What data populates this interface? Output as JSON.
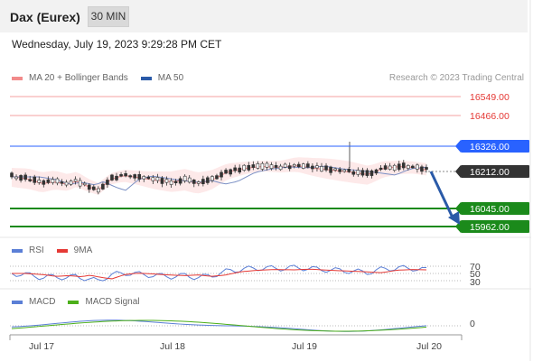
{
  "header": {
    "instrument": "Dax (Eurex)",
    "timeframe": "30 MIN"
  },
  "datetime": "Wednesday, July 19, 2023 9:29:28 PM CET",
  "legend": {
    "ma20": {
      "label": "MA 20 + Bollinger Bands",
      "color": "#f28b8b"
    },
    "ma50": {
      "label": "MA 50",
      "color": "#2a5aa8"
    }
  },
  "credit": "Research © 2023 Trading Central",
  "levels": [
    {
      "value": "16549.00",
      "kind": "resistance",
      "color": "#e53935"
    },
    {
      "value": "16466.00",
      "kind": "resistance",
      "color": "#e53935"
    },
    {
      "value": "16326.00",
      "kind": "pivot",
      "color": "#2962ff"
    },
    {
      "value": "16212.00",
      "kind": "last",
      "color": "#333333"
    },
    {
      "value": "16045.00",
      "kind": "support",
      "color": "#1b8a1b"
    },
    {
      "value": "15962.00",
      "kind": "support",
      "color": "#1b8a1b"
    }
  ],
  "rsi": {
    "legend": {
      "rsi": "RSI",
      "ma": "9MA"
    },
    "levels": [
      "70",
      "50",
      "30"
    ]
  },
  "macd": {
    "legend": {
      "macd": "MACD",
      "signal": "MACD Signal"
    },
    "zero_label": "0"
  },
  "x_axis": {
    "labels": [
      "Jul 17",
      "Jul 18",
      "Jul 19",
      "Jul 20"
    ]
  },
  "colors": {
    "rsi": "#5b7fd6",
    "rsi_ma": "#e53935",
    "macd": "#5b7fd6",
    "macd_signal": "#4caf1a",
    "arrow": "#2a5aa8"
  }
}
